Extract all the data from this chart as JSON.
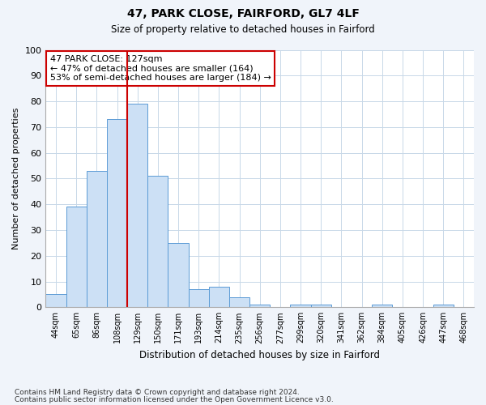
{
  "title1": "47, PARK CLOSE, FAIRFORD, GL7 4LF",
  "title2": "Size of property relative to detached houses in Fairford",
  "xlabel": "Distribution of detached houses by size in Fairford",
  "ylabel": "Number of detached properties",
  "categories": [
    "44sqm",
    "65sqm",
    "86sqm",
    "108sqm",
    "129sqm",
    "150sqm",
    "171sqm",
    "193sqm",
    "214sqm",
    "235sqm",
    "256sqm",
    "277sqm",
    "299sqm",
    "320sqm",
    "341sqm",
    "362sqm",
    "384sqm",
    "405sqm",
    "426sqm",
    "447sqm",
    "468sqm"
  ],
  "values": [
    5,
    39,
    53,
    73,
    79,
    51,
    25,
    7,
    8,
    4,
    1,
    0,
    1,
    1,
    0,
    0,
    1,
    0,
    0,
    1,
    0
  ],
  "bar_color": "#cce0f5",
  "bar_edge_color": "#5b9bd5",
  "red_line_index": 4,
  "red_line_color": "#cc0000",
  "ylim": [
    0,
    100
  ],
  "yticks": [
    0,
    10,
    20,
    30,
    40,
    50,
    60,
    70,
    80,
    90,
    100
  ],
  "annotation_text": "47 PARK CLOSE: 127sqm\n← 47% of detached houses are smaller (164)\n53% of semi-detached houses are larger (184) →",
  "annotation_box_color": "#ffffff",
  "annotation_box_edge_color": "#cc0000",
  "footer1": "Contains HM Land Registry data © Crown copyright and database right 2024.",
  "footer2": "Contains public sector information licensed under the Open Government Licence v3.0.",
  "background_color": "#f0f4fa",
  "plot_background_color": "#ffffff",
  "grid_color": "#c8d8e8"
}
